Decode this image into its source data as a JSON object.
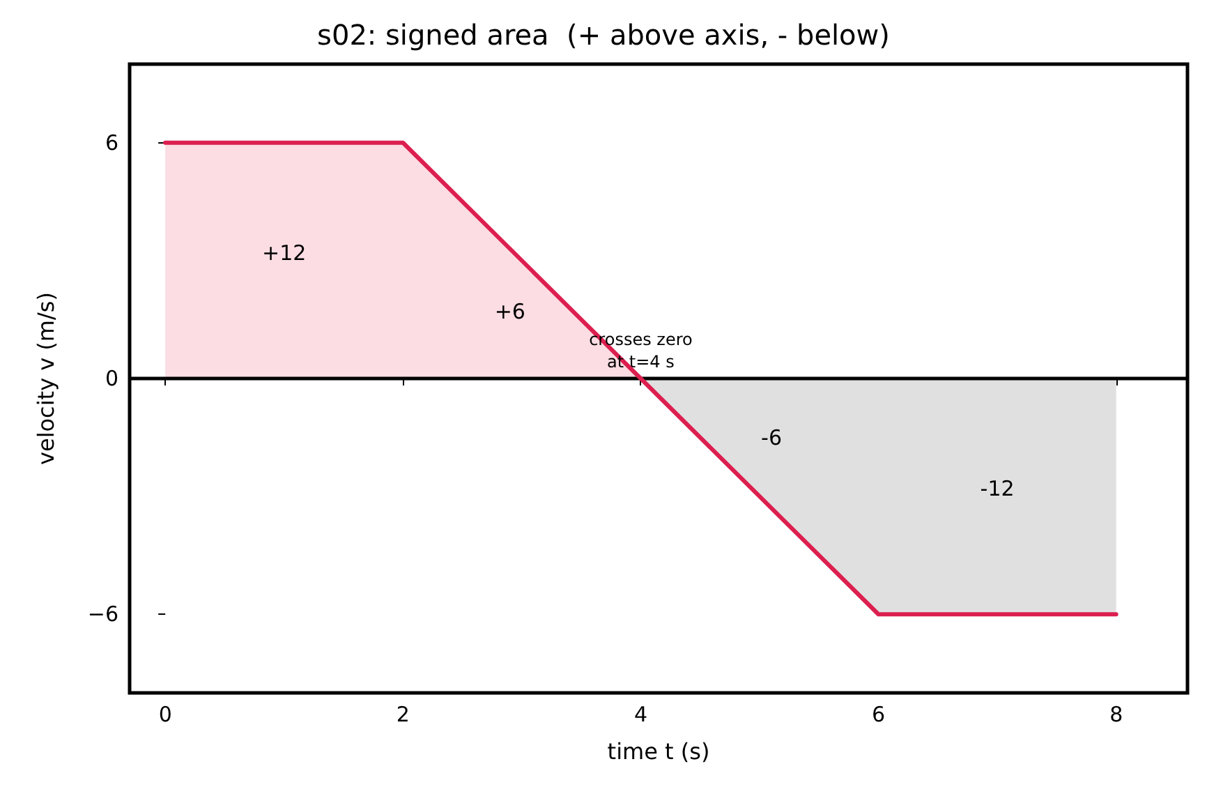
{
  "chart_data": {
    "type": "line",
    "title": "s02: signed area  (+ above axis, - below)",
    "xlabel": "time t (s)",
    "ylabel": "velocity v (m/s)",
    "xlim": [
      -0.3,
      8.6
    ],
    "ylim": [
      -8,
      8
    ],
    "xticks": [
      0,
      2,
      4,
      6,
      8
    ],
    "yticks": [
      {
        "value": -6,
        "label": "−6"
      },
      0,
      6
    ],
    "grid": false,
    "series": [
      {
        "type": "area",
        "color": "#fbdde3",
        "x": [
          0,
          2,
          4
        ],
        "values": [
          6,
          6,
          0
        ]
      },
      {
        "type": "area",
        "color": "#e0e0e0",
        "x": [
          4,
          6,
          8
        ],
        "values": [
          0,
          -6,
          -6
        ]
      },
      {
        "color": "#dc1f4f",
        "x": [
          0,
          2,
          4,
          6,
          8
        ],
        "values": [
          6,
          6,
          0,
          -6,
          -6
        ]
      }
    ],
    "ref_lines": [
      {
        "axis": "y",
        "value": 0,
        "color": "#000000"
      }
    ],
    "annotations": [
      "+12",
      "+6",
      {
        "text": "crosses zero\nat t=4 s",
        "x": 4,
        "y": 0
      },
      "-6",
      "-12"
    ],
    "marker": "none",
    "line_style": "solid"
  }
}
